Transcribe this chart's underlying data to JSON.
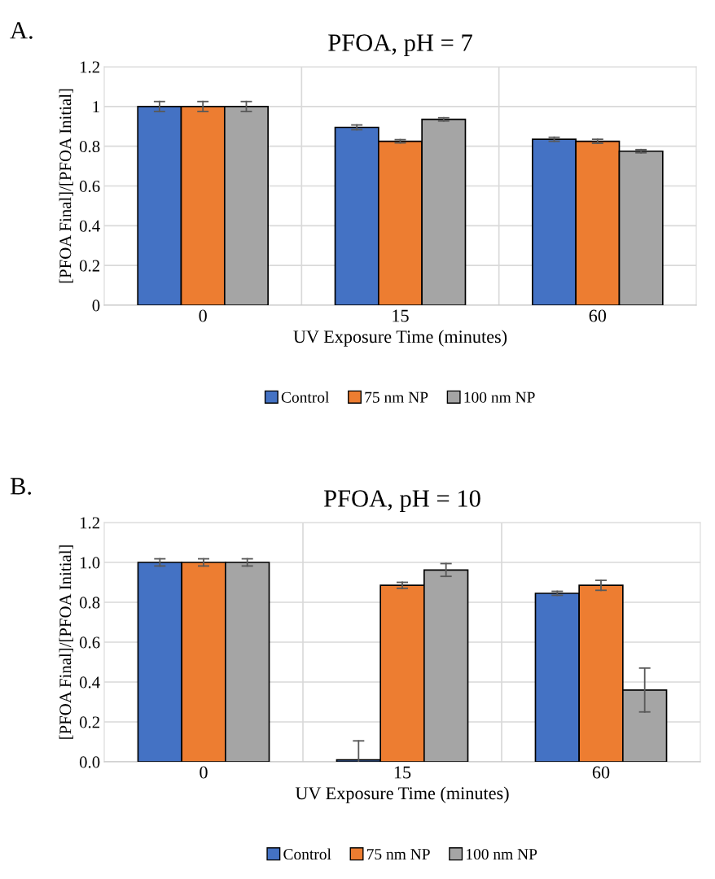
{
  "chart_data": [
    {
      "type": "bar",
      "title": "PFOA, pH = 7",
      "annotations": [
        "A."
      ],
      "xlabel": "UV Exposure Time (minutes)",
      "ylabel": "[PFOA Final]/[PFOA Initial]",
      "categories": [
        "0",
        "15",
        "60"
      ],
      "series": [
        {
          "name": "Control",
          "color": "#4472c4",
          "values": [
            1.0,
            0.895,
            0.835
          ],
          "errors": [
            0.025,
            0.012,
            0.01
          ]
        },
        {
          "name": "75 nm NP",
          "color": "#ed7d31",
          "values": [
            1.0,
            0.825,
            0.825
          ],
          "errors": [
            0.025,
            0.008,
            0.01
          ]
        },
        {
          "name": "100 nm NP",
          "color": "#a5a5a5",
          "values": [
            1.0,
            0.935,
            0.775
          ],
          "errors": [
            0.025,
            0.008,
            0.008
          ]
        }
      ],
      "ylim": [
        0,
        1.2
      ],
      "yticks": [
        0,
        0.2,
        0.4,
        0.6,
        0.8,
        1,
        1.2
      ],
      "grid": true,
      "legend": "bottom"
    },
    {
      "type": "bar",
      "title": "PFOA, pH = 10",
      "annotations": [
        "B."
      ],
      "xlabel": "UV Exposure Time (minutes)",
      "ylabel": "[PFOA Final]/[PFOA Initial]",
      "categories": [
        "0",
        "15",
        "60"
      ],
      "series": [
        {
          "name": "Control",
          "color": "#4472c4",
          "values": [
            1.0,
            0.01,
            0.845
          ],
          "errors": [
            0.018,
            [
              0,
              0.105
            ],
            0.01
          ]
        },
        {
          "name": "75 nm NP",
          "color": "#ed7d31",
          "values": [
            1.0,
            0.885,
            0.885
          ],
          "errors": [
            0.018,
            0.015,
            0.025
          ]
        },
        {
          "name": "100 nm NP",
          "color": "#a5a5a5",
          "values": [
            1.0,
            0.962,
            0.36
          ],
          "errors": [
            0.018,
            0.032,
            0.11
          ]
        }
      ],
      "ylim": [
        0,
        1.2
      ],
      "yticks": [
        {
          "value": 0,
          "label": "0.0"
        },
        {
          "value": 0.2,
          "label": "0.2"
        },
        {
          "value": 0.4,
          "label": "0.4"
        },
        {
          "value": 0.6,
          "label": "0.6"
        },
        {
          "value": 0.8,
          "label": "0.8"
        },
        {
          "value": 1,
          "label": "1.0"
        },
        {
          "value": 1.2,
          "label": "1.2"
        }
      ],
      "grid": true,
      "legend": "bottom"
    }
  ]
}
